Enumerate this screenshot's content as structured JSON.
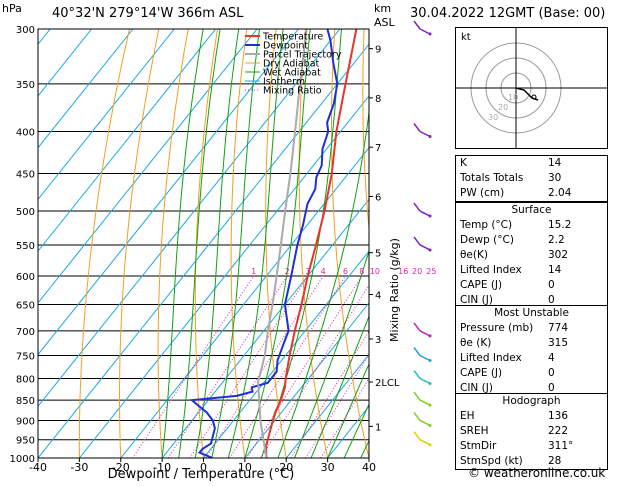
{
  "header": {
    "hpa_label": "hPa",
    "location": "40°32'N  279°14'W  366m  ASL",
    "km_label": "km",
    "asl_label": "ASL",
    "datetime": "30.04.2022  12GMT  (Base: 00)"
  },
  "colors": {
    "temperature": "#e8342a",
    "dewpoint": "#1f2fd8",
    "parcel": "#aaaaaa",
    "dry_adiabat": "#f0a020",
    "wet_adiabat": "#11a011",
    "isotherm": "#14a8e6",
    "mixing_ratio": "#e020b0"
  },
  "chart_data": {
    "type": "line",
    "title": "",
    "xlabel": "Dewpoint / Temperature (°C)",
    "ylabel": "Mixing Ratio (g/kg)",
    "x_ticks": [
      -40,
      -30,
      -20,
      -10,
      0,
      10,
      20,
      30,
      40
    ],
    "x_tick_labels": [
      "-40",
      "-30",
      "-20",
      "-10",
      "0",
      "10",
      "20",
      "30",
      "40"
    ],
    "pressure_levels": [
      300,
      350,
      400,
      450,
      500,
      550,
      600,
      650,
      700,
      750,
      800,
      850,
      900,
      950,
      1000
    ],
    "pressure_labels": [
      "300",
      "350",
      "400",
      "450",
      "500",
      "550",
      "600",
      "650",
      "700",
      "750",
      "800",
      "850",
      "900",
      "950",
      "1000"
    ],
    "km_ticks": [
      {
        "p": 317,
        "label": "9"
      },
      {
        "p": 364,
        "label": "8"
      },
      {
        "p": 418,
        "label": "7"
      },
      {
        "p": 480,
        "label": "6"
      },
      {
        "p": 562,
        "label": "5"
      },
      {
        "p": 632,
        "label": "4"
      },
      {
        "p": 716,
        "label": "3"
      },
      {
        "p": 808,
        "label": "2LCL"
      },
      {
        "p": 915,
        "label": "1"
      }
    ],
    "mixing_ratio_labels": [
      "1",
      "2",
      "3",
      "4",
      "6",
      "8",
      "10",
      "16",
      "20",
      "25"
    ],
    "mixing_ratio_values": [
      1,
      2,
      3,
      4,
      6,
      8,
      10,
      16,
      20,
      25
    ],
    "legend": [
      "Temperature",
      "Dewpoint",
      "Parcel Trajectory",
      "Dry Adiabat",
      "Wet Adiabat",
      "Isotherm",
      "Mixing Ratio"
    ],
    "legend_placement": "top-left",
    "series": [
      {
        "name": "Temperature",
        "points": [
          [
            1000,
            15.2
          ],
          [
            970,
            13
          ],
          [
            950,
            12
          ],
          [
            900,
            9.5
          ],
          [
            880,
            8.5
          ],
          [
            850,
            7.5
          ],
          [
            820,
            6
          ],
          [
            800,
            4.5
          ],
          [
            750,
            1
          ],
          [
            700,
            -2.5
          ],
          [
            650,
            -6
          ],
          [
            600,
            -10
          ],
          [
            550,
            -14
          ],
          [
            500,
            -18.5
          ],
          [
            450,
            -24
          ],
          [
            400,
            -31
          ],
          [
            350,
            -38
          ],
          [
            300,
            -46
          ]
        ]
      },
      {
        "name": "Dewpoint",
        "points": [
          [
            1000,
            2.2
          ],
          [
            985,
            -2
          ],
          [
            975,
            -2
          ],
          [
            960,
            -1
          ],
          [
            940,
            -2
          ],
          [
            920,
            -3
          ],
          [
            900,
            -5
          ],
          [
            880,
            -8
          ],
          [
            860,
            -12
          ],
          [
            850,
            -14
          ],
          [
            840,
            -4
          ],
          [
            830,
            -1
          ],
          [
            820,
            -2
          ],
          [
            810,
            1
          ],
          [
            800,
            1
          ],
          [
            785,
            1
          ],
          [
            760,
            -1
          ],
          [
            740,
            -2
          ],
          [
            720,
            -3
          ],
          [
            700,
            -4
          ],
          [
            650,
            -10
          ],
          [
            600,
            -14
          ],
          [
            550,
            -18.5
          ],
          [
            520,
            -21
          ],
          [
            490,
            -24
          ],
          [
            470,
            -25
          ],
          [
            455,
            -27
          ],
          [
            440,
            -28
          ],
          [
            420,
            -31
          ],
          [
            400,
            -33
          ],
          [
            390,
            -35
          ],
          [
            370,
            -37
          ],
          [
            350,
            -40
          ],
          [
            330,
            -45
          ],
          [
            310,
            -50
          ],
          [
            300,
            -53
          ]
        ]
      },
      {
        "name": "Parcel Trajectory",
        "points": [
          [
            1000,
            15.2
          ],
          [
            900,
            6.5
          ],
          [
            808,
            -1.5
          ],
          [
            750,
            -5
          ],
          [
            700,
            -9
          ],
          [
            650,
            -13
          ],
          [
            600,
            -17.5
          ],
          [
            550,
            -22.5
          ],
          [
            500,
            -28
          ],
          [
            450,
            -34
          ],
          [
            400,
            -41
          ],
          [
            350,
            -49
          ],
          [
            300,
            -58
          ]
        ]
      }
    ]
  },
  "hodograph": {
    "label": "kt",
    "ring_labels": [
      "10",
      "20",
      "30"
    ]
  },
  "indices": [
    {
      "k": "K",
      "v": "14"
    },
    {
      "k": "Totals Totals",
      "v": "30"
    },
    {
      "k": "PW (cm)",
      "v": "2.04"
    }
  ],
  "surface": {
    "title": "Surface",
    "rows": [
      {
        "k": "Temp (°C)",
        "v": "15.2"
      },
      {
        "k": "Dewp (°C)",
        "v": "2.2"
      },
      {
        "k": "θe(K)",
        "v": "302"
      },
      {
        "k": "Lifted Index",
        "v": "14"
      },
      {
        "k": "CAPE (J)",
        "v": "0"
      },
      {
        "k": "CIN (J)",
        "v": "0"
      }
    ]
  },
  "most_unstable": {
    "title": "Most Unstable",
    "rows": [
      {
        "k": "Pressure (mb)",
        "v": "774"
      },
      {
        "k": "θe (K)",
        "v": "315"
      },
      {
        "k": "Lifted Index",
        "v": "4"
      },
      {
        "k": "CAPE (J)",
        "v": "0"
      },
      {
        "k": "CIN (J)",
        "v": "0"
      }
    ]
  },
  "hodo_table": {
    "title": "Hodograph",
    "rows": [
      {
        "k": "EH",
        "v": "136"
      },
      {
        "k": "SREH",
        "v": "222"
      },
      {
        "k": "StmDir",
        "v": "311°"
      },
      {
        "k": "StmSpd (kt)",
        "v": "28"
      }
    ]
  },
  "copyright": "© weatheronline.co.uk"
}
